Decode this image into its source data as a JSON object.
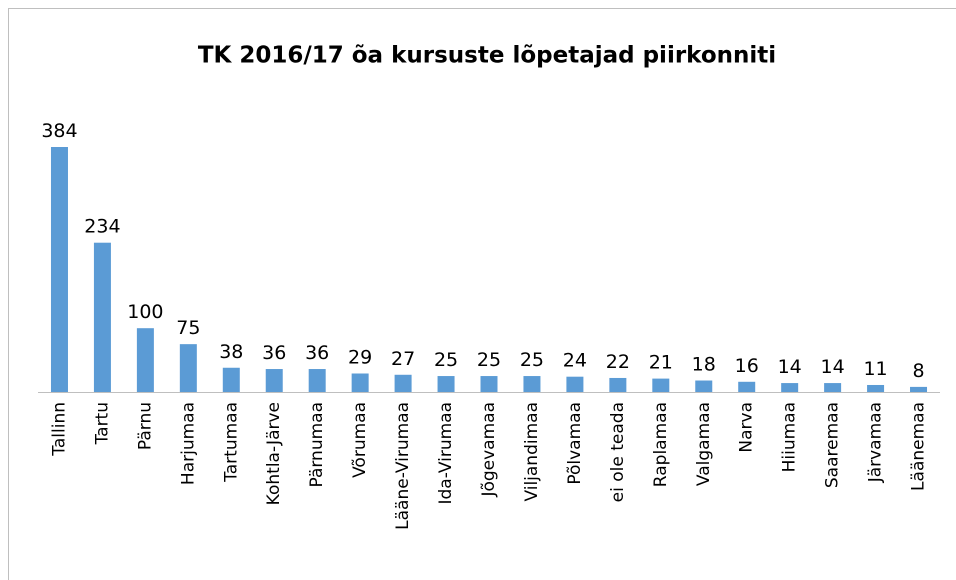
{
  "chart_data": {
    "type": "bar",
    "title": "TK 2016/17 õa kursuste lõpetajad piirkonniti",
    "categories": [
      "Tallinn",
      "Tartu",
      "Pärnu",
      "Harjumaa",
      "Tartumaa",
      "Kohtla-Järve",
      "Pärnumaa",
      "Võrumaa",
      "Lääne-Virumaa",
      "Ida-Virumaa",
      "Jõgevamaa",
      "Viljandimaa",
      "Põlvamaa",
      "ei ole teada",
      "Raplamaa",
      "Valgamaa",
      "Narva",
      "Hiiumaa",
      "Saaremaa",
      "Järvamaa",
      "Läänemaa"
    ],
    "values": [
      384,
      234,
      100,
      75,
      38,
      36,
      36,
      29,
      27,
      25,
      25,
      25,
      24,
      22,
      21,
      18,
      16,
      14,
      14,
      11,
      8
    ],
    "color": "#5b9bd5"
  }
}
